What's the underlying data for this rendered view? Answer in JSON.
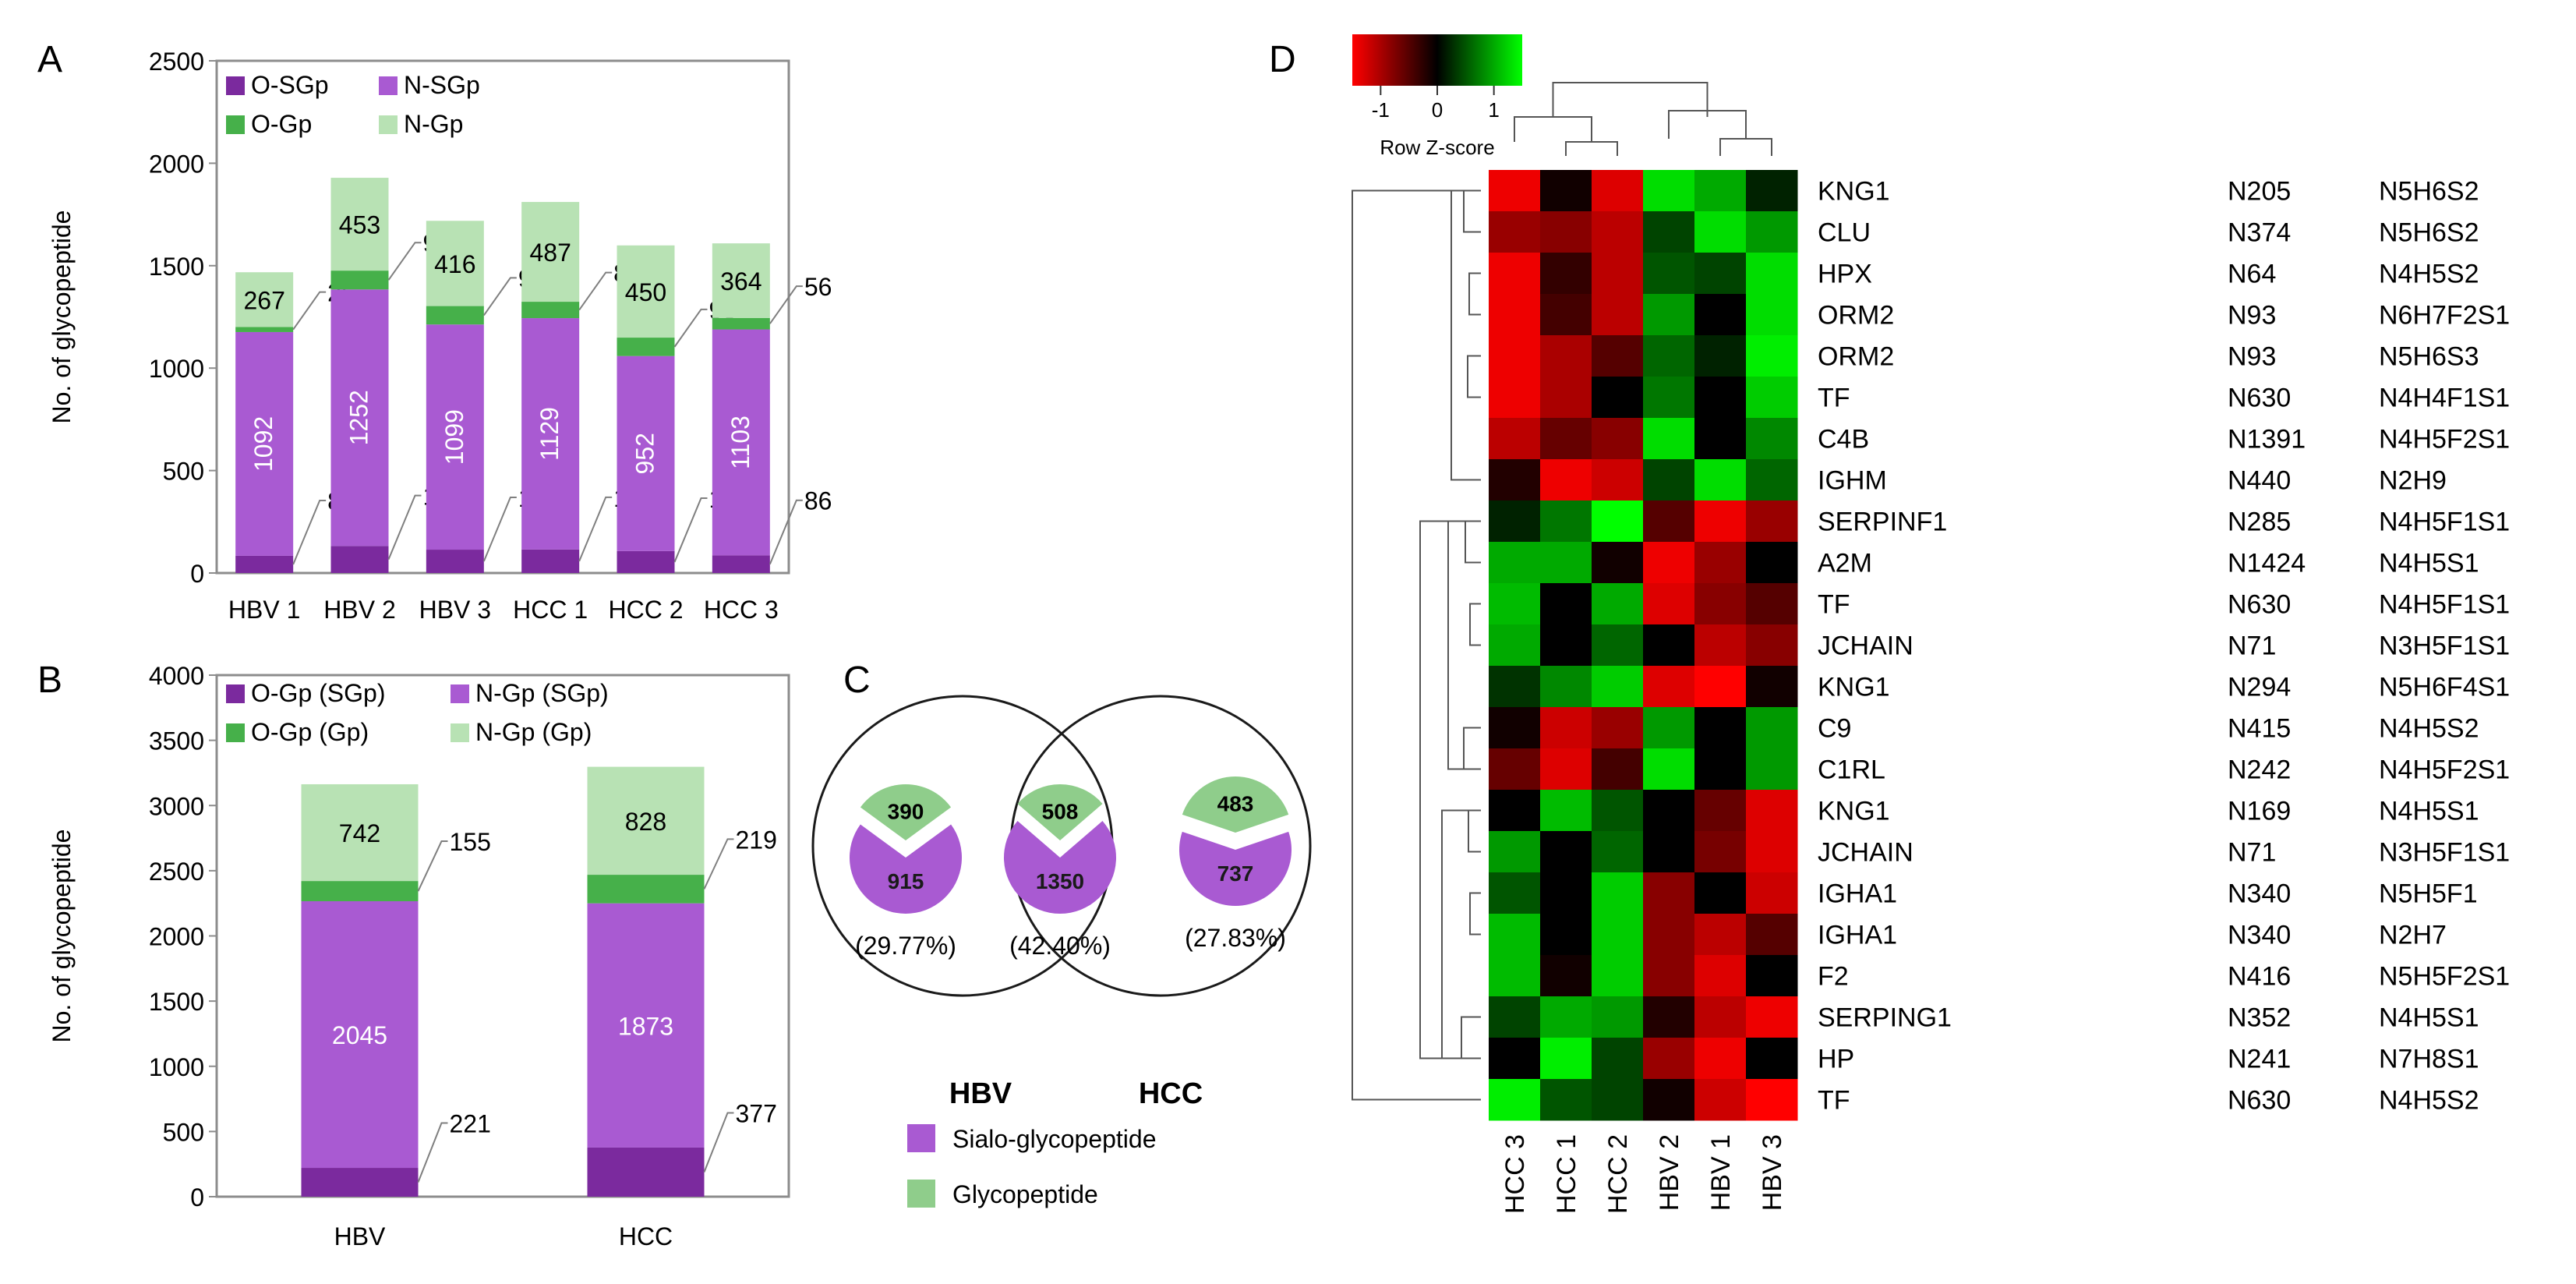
{
  "panels": {
    "a": "A",
    "b": "B",
    "c": "C",
    "d": "D"
  },
  "colors": {
    "o_sgp": "#7b2a9e",
    "n_sgp": "#a95ad2",
    "o_gp": "#46b04a",
    "n_gp": "#b8e2b4",
    "venn_sialo": "#a95ad2",
    "venn_glyco": "#8fcd8b",
    "heat_low": "#ff0000",
    "heat_mid": "#000000",
    "heat_high": "#00ff00"
  },
  "chart_data": [
    {
      "id": "A",
      "type": "bar",
      "stacked": true,
      "ylabel": "No. of glycopeptide",
      "ylim": [
        0,
        2500
      ],
      "yticks": [
        0,
        500,
        1000,
        1500,
        2000,
        2500
      ],
      "categories": [
        "HBV 1",
        "HBV 2",
        "HBV 3",
        "HCC 1",
        "HCC 2",
        "HCC 3"
      ],
      "legend": [
        "O-SGp",
        "N-SGp",
        "O-Gp",
        "N-Gp"
      ],
      "series": [
        {
          "name": "O-SGp",
          "values": [
            84,
            132,
            114,
            115,
            107,
            86
          ]
        },
        {
          "name": "N-SGp",
          "values": [
            1092,
            1252,
            1099,
            1129,
            952,
            1103
          ]
        },
        {
          "name": "O-Gp",
          "values": [
            25,
            92,
            90,
            80,
            90,
            56
          ]
        },
        {
          "name": "N-Gp",
          "values": [
            267,
            453,
            416,
            487,
            450,
            364
          ]
        }
      ]
    },
    {
      "id": "B",
      "type": "bar",
      "stacked": true,
      "ylabel": "No. of glycopeptide",
      "ylim": [
        0,
        4000
      ],
      "yticks": [
        0,
        500,
        1000,
        1500,
        2000,
        2500,
        3000,
        3500,
        4000
      ],
      "categories": [
        "HBV",
        "HCC"
      ],
      "legend": [
        "O-Gp (SGp)",
        "N-Gp (SGp)",
        "O-Gp (Gp)",
        "N-Gp (Gp)"
      ],
      "series": [
        {
          "name": "O-Gp (SGp)",
          "values": [
            221,
            377
          ]
        },
        {
          "name": "N-Gp (SGp)",
          "values": [
            2045,
            1873
          ]
        },
        {
          "name": "O-Gp (Gp)",
          "values": [
            155,
            219
          ]
        },
        {
          "name": "N-Gp (Gp)",
          "values": [
            742,
            828
          ]
        }
      ]
    },
    {
      "id": "C",
      "type": "pie",
      "title_left": "HBV",
      "title_right": "HCC",
      "legend": [
        "Sialo-glycopeptide",
        "Glycopeptide"
      ],
      "groups": [
        {
          "name": "HBV only",
          "sialo": 915,
          "glyco": 390,
          "percent": "(29.77%)"
        },
        {
          "name": "Overlap",
          "sialo": 1350,
          "glyco": 508,
          "percent": "(42.40%)"
        },
        {
          "name": "HCC only",
          "sialo": 737,
          "glyco": 483,
          "percent": "(27.83%)"
        }
      ]
    },
    {
      "id": "D",
      "type": "heatmap",
      "color_key": {
        "title": "Row Z-score",
        "ticks": [
          "-1",
          "0",
          "1"
        ],
        "range": [
          -1.5,
          1.5
        ]
      },
      "columns": [
        "HCC 3",
        "HCC 1",
        "HCC 2",
        "HBV 2",
        "HBV 1",
        "HBV 3"
      ],
      "rows": [
        {
          "protein": "KNG1",
          "site": "N205",
          "glycan": "N5H6S2",
          "z": [
            -1.4,
            -0.1,
            -1.3,
            1.3,
            1.0,
            0.2
          ]
        },
        {
          "protein": "CLU",
          "site": "N374",
          "glycan": "N5H6S2",
          "z": [
            -0.9,
            -0.8,
            -1.1,
            0.4,
            1.3,
            0.9
          ]
        },
        {
          "protein": "HPX",
          "site": "N64",
          "glycan": "N4H5S2",
          "z": [
            -1.4,
            -0.3,
            -1.1,
            0.5,
            0.4,
            1.3
          ]
        },
        {
          "protein": "ORM2",
          "site": "N93",
          "glycan": "N6H7F2S1",
          "z": [
            -1.4,
            -0.4,
            -1.1,
            0.9,
            0.0,
            1.3
          ]
        },
        {
          "protein": "ORM2",
          "site": "N93",
          "glycan": "N5H6S3",
          "z": [
            -1.4,
            -1.0,
            -0.5,
            0.6,
            0.2,
            1.4
          ]
        },
        {
          "protein": "TF",
          "site": "N630",
          "glycan": "N4H4F1S1",
          "z": [
            -1.4,
            -1.0,
            0.0,
            0.7,
            0.0,
            1.2
          ]
        },
        {
          "protein": "C4B",
          "site": "N1391",
          "glycan": "N4H5F2S1",
          "z": [
            -1.1,
            -0.6,
            -0.8,
            1.3,
            0.0,
            0.8
          ]
        },
        {
          "protein": "IGHM",
          "site": "N440",
          "glycan": "N2H9",
          "z": [
            -0.2,
            -1.4,
            -1.2,
            0.4,
            1.3,
            0.6
          ]
        },
        {
          "protein": "SERPINF1",
          "site": "N285",
          "glycan": "N4H5F1S1",
          "z": [
            0.2,
            0.7,
            1.5,
            -0.5,
            -1.4,
            -0.9
          ]
        },
        {
          "protein": "A2M",
          "site": "N1424",
          "glycan": "N4H5S1",
          "z": [
            1.0,
            1.0,
            -0.1,
            -1.4,
            -0.9,
            0.0
          ]
        },
        {
          "protein": "TF",
          "site": "N630",
          "glycan": "N4H5F1S1",
          "z": [
            1.1,
            0.0,
            1.0,
            -1.3,
            -0.8,
            -0.5
          ]
        },
        {
          "protein": "JCHAIN",
          "site": "N71",
          "glycan": "N3H5F1S1",
          "z": [
            1.0,
            0.0,
            0.6,
            0.0,
            -1.1,
            -0.8
          ]
        },
        {
          "protein": "KNG1",
          "site": "N294",
          "glycan": "N5H6F4S1",
          "z": [
            0.3,
            0.8,
            1.2,
            -1.3,
            -1.5,
            -0.1
          ]
        },
        {
          "protein": "C9",
          "site": "N415",
          "glycan": "N4H5S2",
          "z": [
            -0.1,
            -1.2,
            -0.9,
            0.9,
            0.0,
            0.9
          ]
        },
        {
          "protein": "C1RL",
          "site": "N242",
          "glycan": "N4H5F2S1",
          "z": [
            -0.6,
            -1.3,
            -0.4,
            1.3,
            0.0,
            0.9
          ]
        },
        {
          "protein": "KNG1",
          "site": "N169",
          "glycan": "N4H5S1",
          "z": [
            0.0,
            1.1,
            0.5,
            0.0,
            -0.6,
            -1.3
          ]
        },
        {
          "protein": "JCHAIN",
          "site": "N71",
          "glycan": "N3H5F1S1",
          "z": [
            0.9,
            0.0,
            0.6,
            0.0,
            -0.7,
            -1.3
          ]
        },
        {
          "protein": "IGHA1",
          "site": "N340",
          "glycan": "N5H5F1",
          "z": [
            0.5,
            0.0,
            1.2,
            -0.8,
            0.0,
            -1.2
          ]
        },
        {
          "protein": "IGHA1",
          "site": "N340",
          "glycan": "N2H7",
          "z": [
            1.1,
            0.0,
            1.2,
            -0.8,
            -1.1,
            -0.5
          ]
        },
        {
          "protein": "F2",
          "site": "N416",
          "glycan": "N5H5F2S1",
          "z": [
            1.1,
            -0.1,
            1.2,
            -0.8,
            -1.3,
            0.0
          ]
        },
        {
          "protein": "SERPING1",
          "site": "N352",
          "glycan": "N4H5S1",
          "z": [
            0.4,
            1.0,
            0.9,
            -0.2,
            -1.1,
            -1.4
          ]
        },
        {
          "protein": "HP",
          "site": "N241",
          "glycan": "N7H8S1",
          "z": [
            0.0,
            1.4,
            0.4,
            -0.9,
            -1.4,
            0.0
          ]
        },
        {
          "protein": "TF",
          "site": "N630",
          "glycan": "N4H5S2",
          "z": [
            1.4,
            0.5,
            0.4,
            -0.1,
            -1.2,
            -1.5
          ]
        }
      ]
    }
  ]
}
